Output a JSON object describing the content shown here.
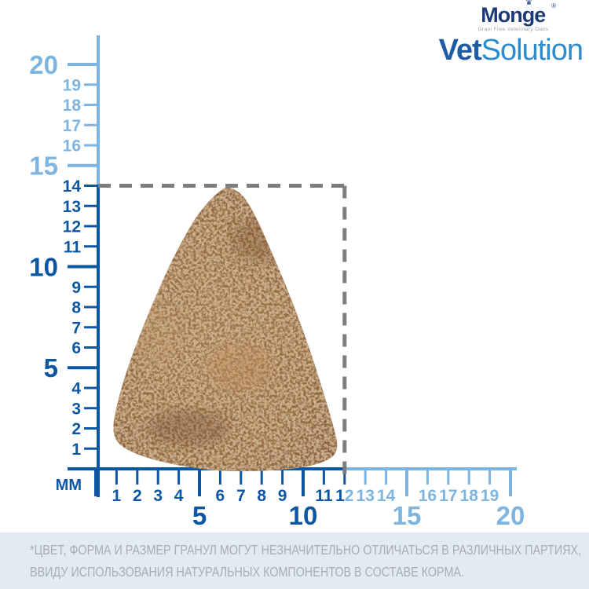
{
  "header": {
    "logo": {
      "brand": "Monge",
      "reg": "®",
      "crown_icon": "crown",
      "tagline": "Grain Free Veterinary Diets",
      "product_bold": "Vet",
      "product_light": "Solution",
      "brand_color": "#1d3a78",
      "vet_color": "#1e5ca6",
      "solution_color": "#2f8ccc"
    }
  },
  "chart_data": {
    "type": "ruler-diagram",
    "description": "Kibble actual-size guide with millimetre rulers and dashed bounding box",
    "unit_label": "ММ",
    "x_axis": {
      "min": 0,
      "max": 20,
      "major_every": 5,
      "dark_until": 12,
      "split_label_at": 12
    },
    "y_axis": {
      "min": 0,
      "max": 20,
      "major_every": 5,
      "dark_until": 14
    },
    "kibble": {
      "width_mm": 12,
      "height_mm": 14,
      "shape": "rounded-triangle"
    },
    "colors": {
      "dark_blue": "#0d56a4",
      "light_blue": "#7db4e0",
      "dash_gray": "#7d7d7d",
      "kibble_brown": "#8f6038"
    }
  },
  "footer": {
    "line1": "*ЦВЕТ, ФОРМА И РАЗМЕР ГРАНУЛ МОГУТ НЕЗНАЧИТЕЛЬНО ОТЛИЧАТЬСЯ В РАЗЛИЧНЫХ ПАРТИЯХ,",
    "line2": "ВВИДУ ИСПОЛЬЗОВАНИЯ НАТУРАЛЬНЫХ КОМПОНЕНТОВ В СОСТАВЕ КОРМА.",
    "bg_color": "#e3eaf3",
    "text_color": "#a8adb5"
  }
}
